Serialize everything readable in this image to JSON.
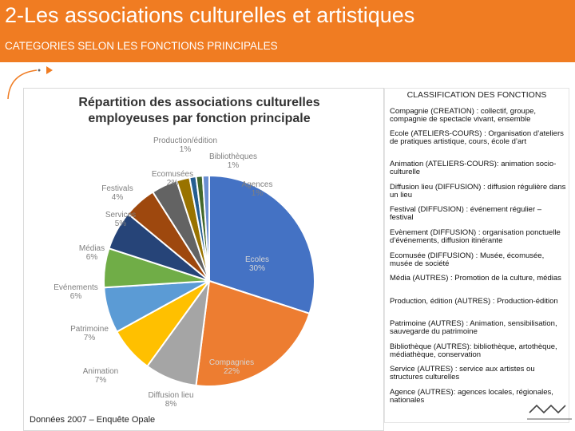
{
  "header": {
    "title": "2-Les associations culturelles et artistiques",
    "subtitle": "CATEGORIES SELON LES FONCTIONS PRINCIPALES"
  },
  "chart_data": {
    "type": "pie",
    "title": "Répartition des associations culturelles employeuses par fonction principale",
    "slices": [
      {
        "label": "Ecoles",
        "value": 30,
        "value_label": "30%",
        "color": "#4472c4"
      },
      {
        "label": "Compagnies",
        "value": 22,
        "value_label": "22%",
        "color": "#ed7d31"
      },
      {
        "label": "Diffusion lieu",
        "value": 8,
        "value_label": "8%",
        "color": "#a5a5a5"
      },
      {
        "label": "Animation",
        "value": 7,
        "value_label": "7%",
        "color": "#ffc000"
      },
      {
        "label": "Patrimoine",
        "value": 7,
        "value_label": "7%",
        "color": "#5b9bd5"
      },
      {
        "label": "Evénements",
        "value": 6,
        "value_label": "6%",
        "color": "#70ad47"
      },
      {
        "label": "Médias",
        "value": 6,
        "value_label": "6%",
        "color": "#264478"
      },
      {
        "label": "Services",
        "value": 5,
        "value_label": "5%",
        "color": "#9e480e"
      },
      {
        "label": "Festivals",
        "value": 4,
        "value_label": "4%",
        "color": "#636363"
      },
      {
        "label": "Ecomusées",
        "value": 2,
        "value_label": "2%",
        "color": "#997300"
      },
      {
        "label": "Production/édition",
        "value": 1,
        "value_label": "1%",
        "color": "#255e91"
      },
      {
        "label": "Bibliothèques",
        "value": 1,
        "value_label": "1%",
        "color": "#43682b"
      },
      {
        "label": "Agences",
        "value": 1,
        "value_label": "1%",
        "color": "#698ed0"
      }
    ]
  },
  "source": "Données 2007 – Enquête Opale",
  "classification": {
    "title": "CLASSIFICATION DES FONCTIONS",
    "items": [
      "Compagnie (CREATION) : collectif, groupe, compagnie de spectacle vivant, ensemble",
      "Ecole (ATELIERS-COURS) : Organisation d’ateliers de pratiques artistique, cours, école d’art",
      "Animation (ATELIERS-COURS): animation socio-culturelle",
      "Diffusion lieu (DIFFUSION) : diffusion régulière dans un lieu",
      "Festival (DIFFUSION) : événement régulier – festival",
      "Evènement (DIFFUSION) : organisation ponctuelle d’événements, diffusion itinérante",
      "Ecomusée (DIFFUSION) : Musée, écomusée, musée de société",
      "Média (AUTRES) : Promotion de la culture, médias",
      "Production, édition (AUTRES) : Production-édition",
      "Patrimoine (AUTRES) : Animation, sensibilisation, sauvegarde du patrimoine",
      "Bibliothèque (AUTRES): bibliothèque, artothèque, médiathèque, conservation",
      "Service (AUTRES) : service aux artistes ou structures culturelles",
      "Agence (AUTRES): agences locales, régionales, nationales"
    ]
  },
  "colors": {
    "header": "#f07c22",
    "accent": "#f07c22"
  },
  "icons": {
    "decoration": "curved-arrow-icon",
    "logo": "opale-wave-logo-icon"
  }
}
